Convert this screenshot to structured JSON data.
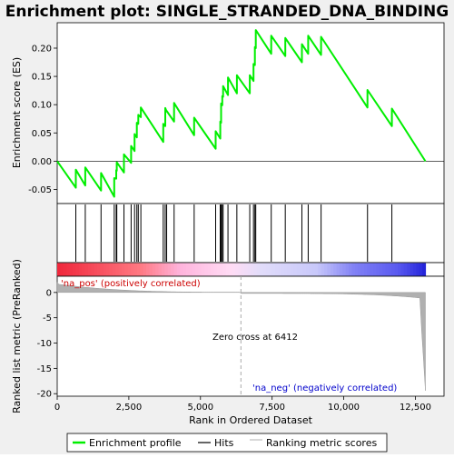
{
  "chart_data": {
    "type": "line",
    "title": "Enrichment plot: SINGLE_STRANDED_DNA_BINDING",
    "es_ylabel": "Enrichment score (ES)",
    "rank_ylabel": "Ranked list metric (PreRanked)",
    "xlabel": "Rank in Ordered Dataset",
    "xlim": [
      0,
      13500
    ],
    "es_ylim": [
      -0.075,
      0.245
    ],
    "rank_ylim": [
      -20.5,
      3.2
    ],
    "x_ticks": [
      0,
      2500,
      5000,
      7500,
      10000,
      12500
    ],
    "x_tick_labels": [
      "0",
      "2,500",
      "5,000",
      "7,500",
      "10,000",
      "12,500"
    ],
    "es_ticks": [
      -0.05,
      0.0,
      0.05,
      0.1,
      0.15,
      0.2
    ],
    "es_tick_labels": [
      "-0.05",
      "0.00",
      "0.05",
      "0.10",
      "0.15",
      "0.20"
    ],
    "rank_ticks": [
      0,
      -5,
      -10,
      -15,
      -20
    ],
    "rank_tick_labels": [
      "0",
      "-5",
      "-10",
      "-15",
      "-20"
    ],
    "hits": [
      650,
      980,
      1530,
      1990,
      2060,
      2080,
      2330,
      2580,
      2700,
      2780,
      2830,
      2920,
      3700,
      3770,
      3820,
      4080,
      4780,
      5530,
      5690,
      5720,
      5760,
      5790,
      5960,
      6270,
      6720,
      6850,
      6900,
      6930,
      7470,
      7960,
      8540,
      8760,
      9210,
      10830,
      11680
    ],
    "es_points": [
      [
        0,
        0.0
      ],
      [
        650,
        -0.047
      ],
      [
        650,
        -0.015
      ],
      [
        980,
        -0.043
      ],
      [
        980,
        -0.011
      ],
      [
        1530,
        -0.052
      ],
      [
        1530,
        -0.021
      ],
      [
        1990,
        -0.063
      ],
      [
        1990,
        -0.03
      ],
      [
        2060,
        -0.031
      ],
      [
        2060,
        -0.016
      ],
      [
        2080,
        -0.017
      ],
      [
        2080,
        -0.002
      ],
      [
        2330,
        -0.02
      ],
      [
        2330,
        0.012
      ],
      [
        2580,
        -0.003
      ],
      [
        2580,
        0.027
      ],
      [
        2700,
        0.018
      ],
      [
        2700,
        0.048
      ],
      [
        2780,
        0.042
      ],
      [
        2780,
        0.068
      ],
      [
        2830,
        0.066
      ],
      [
        2830,
        0.082
      ],
      [
        2920,
        0.078
      ],
      [
        2920,
        0.095
      ],
      [
        3700,
        0.034
      ],
      [
        3700,
        0.066
      ],
      [
        3770,
        0.062
      ],
      [
        3770,
        0.094
      ],
      [
        3820,
        0.088
      ],
      [
        3820,
        0.089
      ],
      [
        4080,
        0.07
      ],
      [
        4080,
        0.103
      ],
      [
        4780,
        0.046
      ],
      [
        4780,
        0.077
      ],
      [
        5530,
        0.022
      ],
      [
        5530,
        0.053
      ],
      [
        5690,
        0.04
      ],
      [
        5690,
        0.07
      ],
      [
        5720,
        0.068
      ],
      [
        5720,
        0.102
      ],
      [
        5760,
        0.099
      ],
      [
        5760,
        0.115
      ],
      [
        5790,
        0.114
      ],
      [
        5790,
        0.133
      ],
      [
        5960,
        0.117
      ],
      [
        5960,
        0.148
      ],
      [
        6270,
        0.12
      ],
      [
        6270,
        0.152
      ],
      [
        6720,
        0.12
      ],
      [
        6720,
        0.152
      ],
      [
        6850,
        0.142
      ],
      [
        6850,
        0.172
      ],
      [
        6900,
        0.17
      ],
      [
        6900,
        0.202
      ],
      [
        6930,
        0.2
      ],
      [
        6930,
        0.232
      ],
      [
        7470,
        0.19
      ],
      [
        7470,
        0.222
      ],
      [
        7960,
        0.186
      ],
      [
        7960,
        0.218
      ],
      [
        8540,
        0.175
      ],
      [
        8540,
        0.207
      ],
      [
        8760,
        0.19
      ],
      [
        8760,
        0.222
      ],
      [
        9210,
        0.188
      ],
      [
        9210,
        0.22
      ],
      [
        10830,
        0.095
      ],
      [
        10830,
        0.126
      ],
      [
        11680,
        0.062
      ],
      [
        11680,
        0.093
      ],
      [
        12850,
        0.0
      ]
    ],
    "zero_cross": 6412,
    "zero_cross_label": "Zero cross at 6412",
    "pos_label": "'na_pos' (positively correlated)",
    "neg_label": "'na_neg' (negatively correlated)",
    "n_total": 12850,
    "legend": [
      "Enrichment profile",
      "Hits",
      "Ranking metric scores"
    ],
    "legend_placement": "bottom",
    "colors": {
      "es_line": "#00ee00",
      "hit": "#000000",
      "rank_fill": "#b0b0b0",
      "pos_text": "#cc0000",
      "neg_text": "#0000cc",
      "zero_line": "#aaaaaa",
      "bar_pos": "#ff0000",
      "bar_neg": "#0000ff"
    }
  }
}
